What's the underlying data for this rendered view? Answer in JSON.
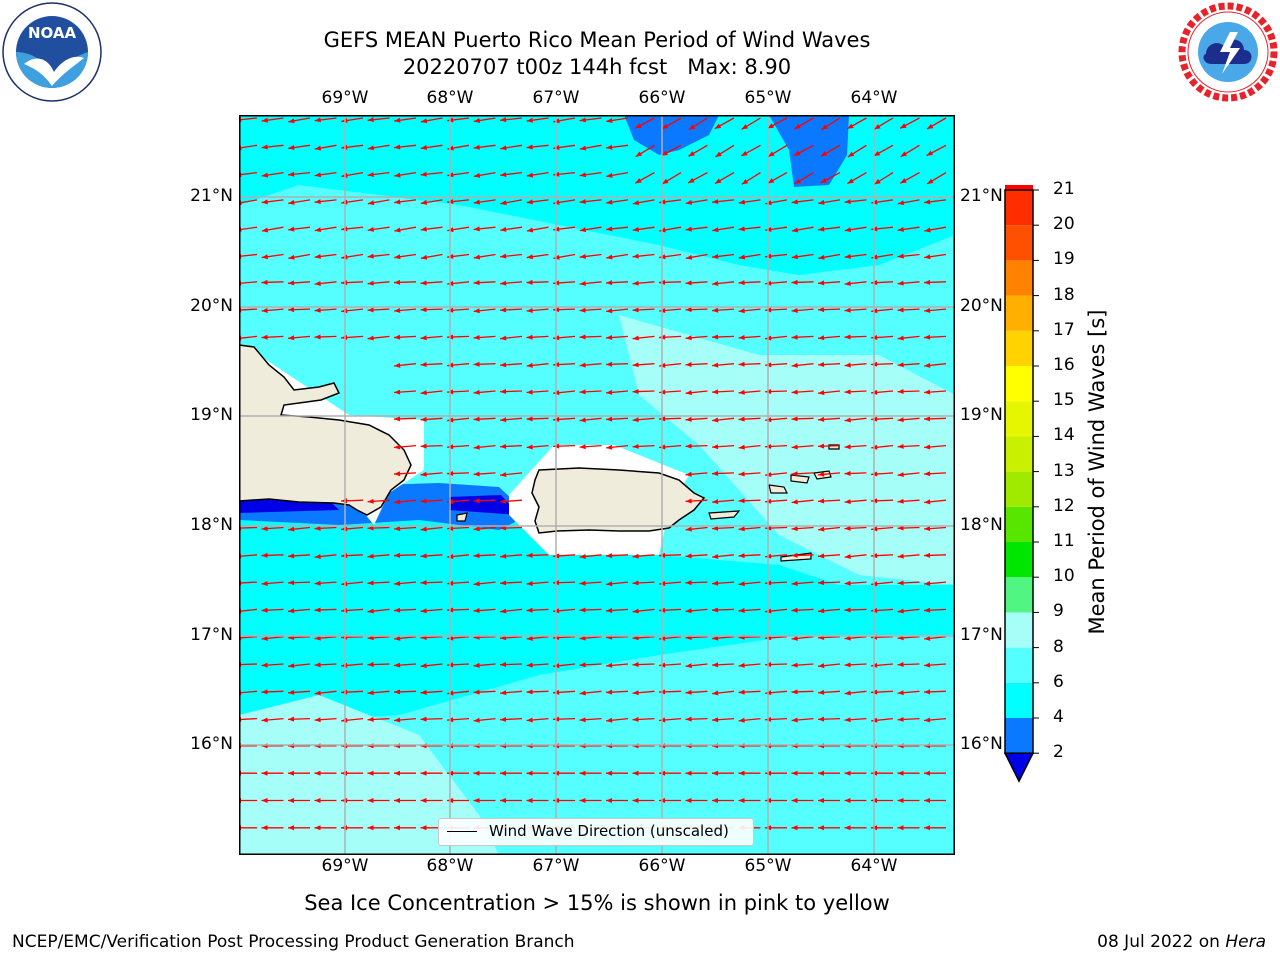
{
  "header": {
    "title_line1": "GEFS MEAN Puerto Rico Mean Period of Wind Waves",
    "title_line2": "20220707 t00z 144h fcst   Max: 8.90"
  },
  "logos": {
    "left": {
      "icon": "noaa-logo-icon",
      "text": "NOAA",
      "ring_text": "NATIONAL OCEANIC AND ATMOSPHERIC ADMINISTRATION · U.S. DEPARTMENT OF COMMERCE"
    },
    "right": {
      "icon": "nws-logo-icon",
      "ring_text": "NATIONAL WEATHER SERVICE"
    }
  },
  "map": {
    "lon_labels": [
      "69°W",
      "68°W",
      "67°W",
      "66°W",
      "65°W",
      "64°W"
    ],
    "lat_labels": [
      "21°N",
      "20°N",
      "19°N",
      "18°N",
      "17°N",
      "16°N"
    ],
    "legend_label": "Wind Wave Direction (unscaled)",
    "arrow_color": "#ff0000",
    "land_color": "#efecdc"
  },
  "colorbar": {
    "label": "Mean Period of Wind Waves [s]",
    "ticks": [
      "2",
      "4",
      "6",
      "8",
      "9",
      "10",
      "11",
      "12",
      "13",
      "14",
      "15",
      "16",
      "17",
      "18",
      "19",
      "20",
      "21"
    ],
    "colors": [
      "#0000e6",
      "#0a78ff",
      "#00ffff",
      "#55ffff",
      "#a5fff8",
      "#50f582",
      "#00e600",
      "#58e600",
      "#a0ea00",
      "#c8f000",
      "#e6f500",
      "#ffff00",
      "#ffd200",
      "#ffaf00",
      "#ff8200",
      "#ff5000",
      "#ff2d00",
      "#ff0000"
    ]
  },
  "footer": {
    "sea_ice_note": "Sea Ice Concentration > 15% is shown in pink to yellow",
    "branch": "NCEP/EMC/Verification Post Processing Product Generation Branch",
    "date": "08 Jul 2022 on",
    "host": "Hera"
  }
}
